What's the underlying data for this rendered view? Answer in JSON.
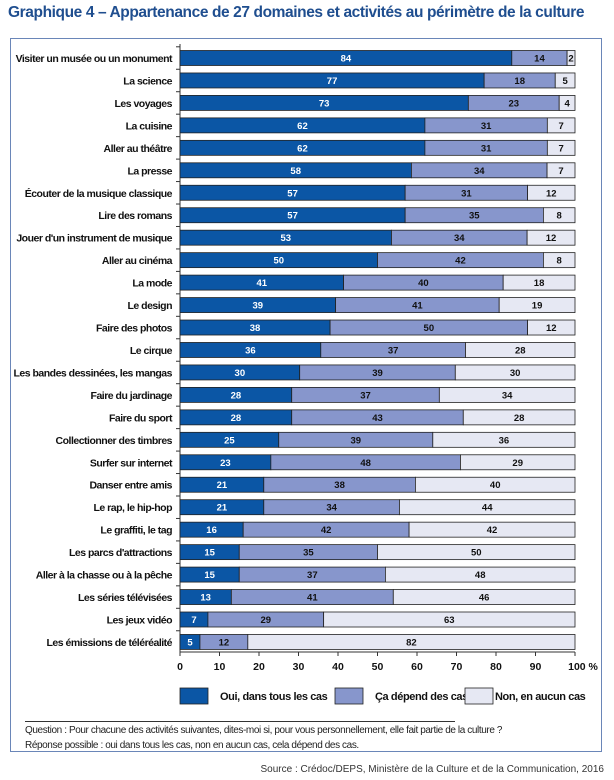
{
  "title": "Graphique 4 – Appartenance de 27 domaines et activités au périmètre de la culture",
  "chart_data": {
    "type": "bar",
    "orientation": "horizontal",
    "stacked": true,
    "title": "Graphique 4 – Appartenance de 27 domaines et activités au périmètre de la culture",
    "xlabel": "",
    "ylabel": "",
    "xlim": [
      0,
      100
    ],
    "x_ticks": [
      "0",
      "10",
      "20",
      "30",
      "40",
      "50",
      "60",
      "70",
      "80",
      "90",
      "100 %"
    ],
    "grid": false,
    "legend_position": "bottom",
    "categories": [
      "Visiter un musée ou un monument",
      "La science",
      "Les voyages",
      "La cuisine",
      "Aller au théâtre",
      "La presse",
      "Écouter de la musique classique",
      "Lire des romans",
      "Jouer d'un instrument de musique",
      "Aller au cinéma",
      "La mode",
      "Le design",
      "Faire des photos",
      "Le cirque",
      "Les bandes dessinées, les mangas",
      "Faire du jardinage",
      "Faire du sport",
      "Collectionner des timbres",
      "Surfer sur internet",
      "Danser entre amis",
      "Le rap, le hip-hop",
      "Le graffiti, le tag",
      "Les parcs d'attractions",
      "Aller à la chasse ou à la pêche",
      "Les séries télévisées",
      "Les jeux vidéo",
      "Les émissions de téléréalité"
    ],
    "series": [
      {
        "name": "Oui, dans tous les cas",
        "color": "#0b56a5",
        "values": [
          84,
          77,
          73,
          62,
          62,
          58,
          57,
          57,
          53,
          50,
          41,
          39,
          38,
          36,
          30,
          28,
          28,
          25,
          23,
          21,
          21,
          16,
          15,
          15,
          13,
          7,
          5
        ]
      },
      {
        "name": "Ça dépend des cas",
        "color": "#8796cc",
        "values": [
          14,
          18,
          23,
          31,
          31,
          34,
          31,
          35,
          34,
          42,
          40,
          41,
          50,
          37,
          39,
          37,
          43,
          39,
          48,
          38,
          34,
          42,
          35,
          37,
          41,
          29,
          12
        ]
      },
      {
        "name": "Non, en aucun cas",
        "color": "#e6e8f3",
        "values": [
          2,
          5,
          4,
          7,
          7,
          7,
          12,
          8,
          12,
          8,
          18,
          19,
          12,
          28,
          30,
          34,
          28,
          36,
          29,
          40,
          44,
          42,
          50,
          48,
          46,
          63,
          82
        ]
      }
    ]
  },
  "notes": {
    "question": "Question : Pour chacune des activités suivantes, dites-moi si, pour vous personnellement, elle fait partie de la culture ?",
    "answers": "Réponse possible : oui dans tous les cas, non en aucun cas, cela dépend des cas."
  },
  "source": "Source : Crédoc/DEPS, Ministère de la Culture et de la Communication, 2016"
}
